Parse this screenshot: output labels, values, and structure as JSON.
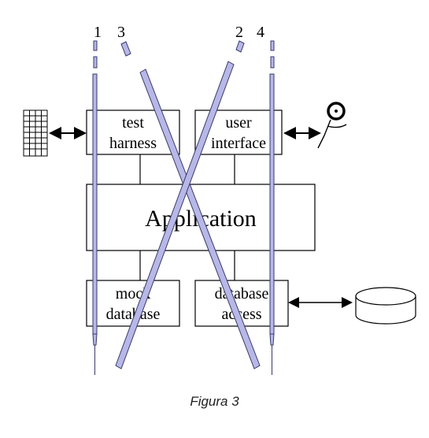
{
  "lane_labels": {
    "l1": "1",
    "l2": "2",
    "l3": "3",
    "l4": "4"
  },
  "boxes": {
    "test_harness": {
      "line1": "test",
      "line2": "harness"
    },
    "user_interface": {
      "line1": "user",
      "line2": "interface"
    },
    "application": {
      "label": "Application"
    },
    "mock_database": {
      "line1": "mock",
      "line2": "database"
    },
    "database_access": {
      "line1": "database",
      "line2": "access"
    }
  },
  "caption": "Figura 3",
  "colors": {
    "lane_fill": "#b8b8e8",
    "lane_stroke": "#3a3a6a"
  }
}
